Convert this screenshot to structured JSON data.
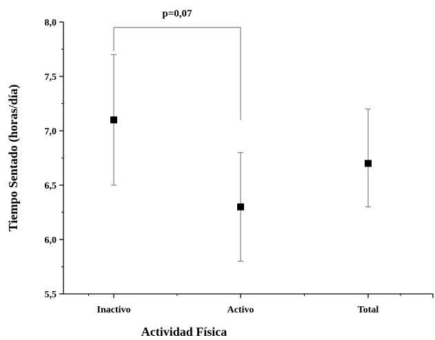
{
  "chart_data": {
    "type": "scatter",
    "xlabel": "Actividad Física",
    "ylabel": "Tiempo Sentado (horas/día)",
    "ylim": [
      5.5,
      8.0
    ],
    "yticks": [
      "5,5",
      "6,0",
      "6,5",
      "7,0",
      "7,5",
      "8,0"
    ],
    "ytick_values": [
      5.5,
      6.0,
      6.5,
      7.0,
      7.5,
      8.0
    ],
    "categories": [
      "Inactivo",
      "Activo",
      "Total"
    ],
    "series": [
      {
        "values": [
          7.1,
          6.3,
          6.7
        ],
        "error_low": [
          6.5,
          5.8,
          6.3
        ],
        "error_high": [
          7.7,
          6.8,
          7.2
        ]
      }
    ],
    "annotations": [
      {
        "text": "p=0,07",
        "between": [
          "Inactivo",
          "Activo"
        ],
        "bracket_y": 7.95,
        "drop_to": [
          7.73,
          7.1
        ]
      }
    ],
    "grid": false,
    "marker": "square",
    "colors": {
      "marker": "#000000",
      "error_bar": "#7f7f7f",
      "axis": "#000000"
    }
  }
}
